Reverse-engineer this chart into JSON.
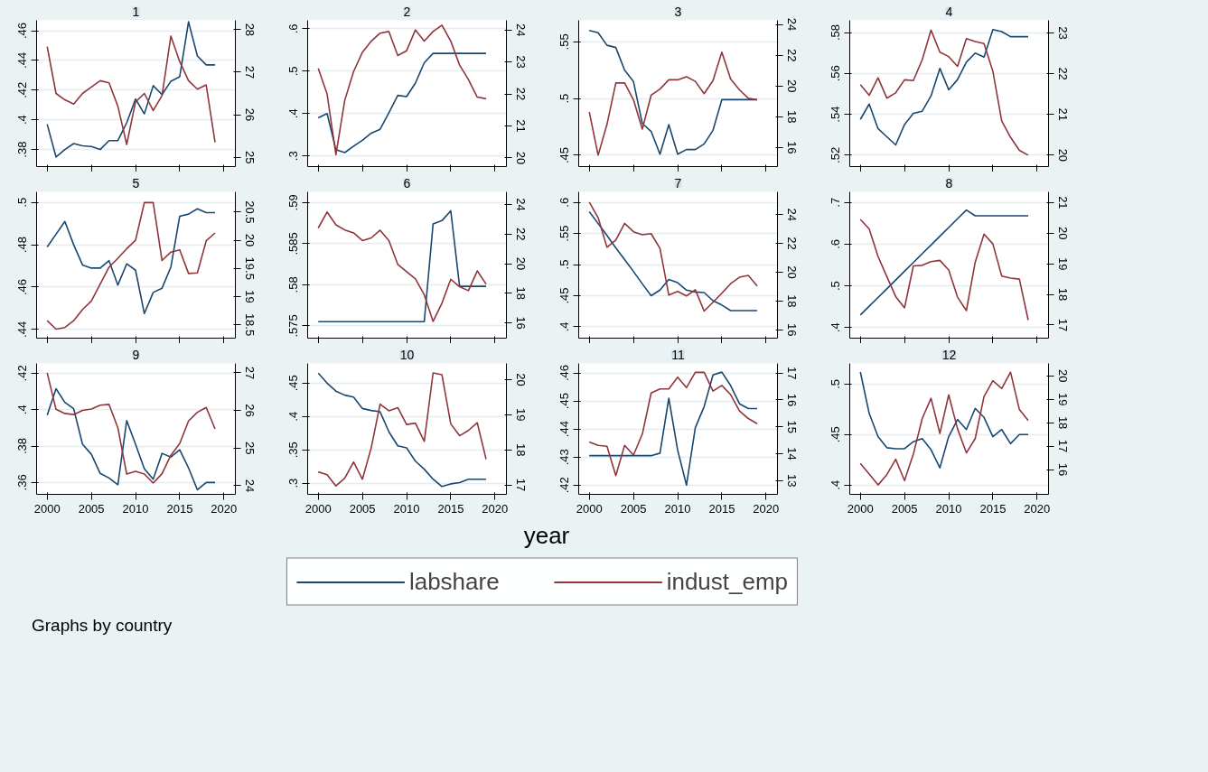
{
  "chart_data": [
    {
      "type": "line",
      "title": "1",
      "legend": "bottom",
      "annotations": [
        "Graphs by country"
      ],
      "x": [
        2000,
        2001,
        2002,
        2003,
        2004,
        2005,
        2006,
        2007,
        2008,
        2009,
        2010,
        2011,
        2012,
        2013,
        2014,
        2015,
        2016,
        2017,
        2018,
        2019
      ],
      "xlim": [
        1998.8,
        2021.3
      ],
      "xticks": [
        2000,
        2005,
        2010,
        2015,
        2020
      ],
      "ylim": [
        0.3685,
        0.467
      ],
      "yticks": [
        {
          "value": 0.38,
          "label": ".38"
        },
        {
          "value": 0.4,
          "label": ".4"
        },
        {
          "value": 0.42,
          "label": ".42"
        },
        {
          "value": 0.44,
          "label": ".44"
        },
        {
          "value": 0.46,
          "label": ".46"
        }
      ],
      "y2lim": [
        24.78,
        28.22
      ],
      "y2ticks": [
        25,
        26,
        27,
        28
      ],
      "grid": "y",
      "tick_labels": "y",
      "series": [
        {
          "name": "labshare",
          "color": "#1a476f",
          "values": [
            0.397,
            0.375,
            0.38,
            0.384,
            0.3825,
            0.382,
            0.38,
            0.386,
            0.386,
            0.398,
            0.414,
            0.404,
            0.423,
            0.417,
            0.426,
            0.429,
            0.466,
            0.443,
            0.437,
            0.437
          ]
        },
        {
          "name": "indust_emp",
          "color": "#90353b",
          "axis": "y2",
          "values": [
            27.6,
            26.5,
            26.35,
            26.25,
            26.5,
            26.65,
            26.8,
            26.75,
            26.2,
            25.3,
            26.3,
            26.5,
            26.1,
            26.45,
            27.85,
            27.25,
            26.8,
            26.6,
            26.7,
            25.35
          ]
        }
      ]
    },
    {
      "type": "line",
      "title": "2",
      "x": [
        2000,
        2001,
        2002,
        2003,
        2004,
        2005,
        2006,
        2007,
        2008,
        2009,
        2010,
        2011,
        2012,
        2013,
        2014,
        2015,
        2016,
        2017,
        2018,
        2019
      ],
      "xlim": [
        1998.8,
        2021.3
      ],
      "xticks": [
        2000,
        2005,
        2010,
        2015,
        2020
      ],
      "ylim": [
        0.275,
        0.62
      ],
      "yticks": [
        {
          "value": 0.3,
          "label": ".3"
        },
        {
          "value": 0.4,
          "label": ".4"
        },
        {
          "value": 0.5,
          "label": ".5"
        },
        {
          "value": 0.6,
          "label": ".6"
        }
      ],
      "y2lim": [
        19.73,
        24.3
      ],
      "y2ticks": [
        20,
        21,
        22,
        23,
        24
      ],
      "grid": "y",
      "tick_labels": "y",
      "series": [
        {
          "color": "#1a476f",
          "values": [
            0.39,
            0.4,
            0.315,
            0.308,
            0.323,
            0.337,
            0.354,
            0.363,
            0.402,
            0.443,
            0.44,
            0.472,
            0.52,
            0.542,
            0.542,
            0.542,
            0.542,
            0.542,
            0.542,
            0.542
          ]
        },
        {
          "color": "#90353b",
          "axis": "y2",
          "values": [
            22.8,
            22.0,
            20.1,
            21.8,
            22.7,
            23.3,
            23.65,
            23.9,
            23.95,
            23.2,
            23.35,
            24.0,
            23.65,
            23.95,
            24.15,
            23.65,
            22.9,
            22.45,
            21.9,
            21.85
          ]
        }
      ]
    },
    {
      "type": "line",
      "title": "3",
      "x": [
        2000,
        2001,
        2002,
        2003,
        2004,
        2005,
        2006,
        2007,
        2008,
        2009,
        2010,
        2011,
        2012,
        2013,
        2014,
        2015,
        2016,
        2017,
        2018,
        2019
      ],
      "xlim": [
        1998.8,
        2021.3
      ],
      "xticks": [
        2000,
        2005,
        2010,
        2015,
        2020
      ],
      "ylim": [
        0.44,
        0.569
      ],
      "yticks": [
        {
          "value": 0.45,
          "label": ".45"
        },
        {
          "value": 0.5,
          "label": ".5"
        },
        {
          "value": 0.55,
          "label": ".55"
        }
      ],
      "y2lim": [
        14.76,
        24.27
      ],
      "y2ticks": [
        16,
        18,
        20,
        22,
        24
      ],
      "grid": "y",
      "tick_labels": "y",
      "series": [
        {
          "color": "#1a476f",
          "values": [
            0.56,
            0.558,
            0.547,
            0.545,
            0.525,
            0.515,
            0.478,
            0.471,
            0.451,
            0.477,
            0.451,
            0.455,
            0.455,
            0.46,
            0.472,
            0.499,
            0.499,
            0.499,
            0.499,
            0.499
          ]
        },
        {
          "color": "#90353b",
          "axis": "y2",
          "values": [
            18.3,
            15.5,
            17.5,
            20.2,
            20.2,
            19.1,
            17.2,
            19.4,
            19.8,
            20.4,
            20.4,
            20.6,
            20.3,
            19.5,
            20.35,
            22.2,
            20.45,
            19.75,
            19.2,
            19.1
          ]
        }
      ]
    },
    {
      "type": "line",
      "title": "4",
      "x": [
        2000,
        2001,
        2002,
        2003,
        2004,
        2005,
        2006,
        2007,
        2008,
        2009,
        2010,
        2011,
        2012,
        2013,
        2014,
        2015,
        2016,
        2017,
        2018,
        2019
      ],
      "xlim": [
        1998.8,
        2021.3
      ],
      "xticks": [
        2000,
        2005,
        2010,
        2015,
        2020
      ],
      "ylim": [
        0.5144,
        0.586
      ],
      "yticks": [
        {
          "value": 0.52,
          "label": ".52"
        },
        {
          "value": 0.54,
          "label": ".54"
        },
        {
          "value": 0.56,
          "label": ".56"
        },
        {
          "value": 0.58,
          "label": ".58"
        }
      ],
      "y2lim": [
        19.72,
        23.31
      ],
      "y2ticks": [
        20,
        21,
        22,
        23
      ],
      "grid": "y",
      "tick_labels": "y",
      "series": [
        {
          "color": "#1a476f",
          "values": [
            0.5375,
            0.545,
            0.533,
            0.529,
            0.525,
            0.535,
            0.5405,
            0.5415,
            0.549,
            0.5625,
            0.552,
            0.557,
            0.5655,
            0.57,
            0.568,
            0.5815,
            0.5805,
            0.578,
            0.578,
            0.578
          ]
        },
        {
          "color": "#90353b",
          "axis": "y2",
          "values": [
            21.73,
            21.47,
            21.9,
            21.4,
            21.53,
            21.85,
            21.83,
            22.34,
            23.07,
            22.53,
            22.42,
            22.18,
            22.86,
            22.79,
            22.74,
            22.06,
            20.84,
            20.44,
            20.12,
            20.0
          ]
        }
      ]
    },
    {
      "type": "line",
      "title": "5",
      "x": [
        2000,
        2001,
        2002,
        2003,
        2004,
        2005,
        2006,
        2007,
        2008,
        2009,
        2010,
        2011,
        2012,
        2013,
        2014,
        2015,
        2016,
        2017,
        2018,
        2019
      ],
      "xlim": [
        1998.8,
        2021.3
      ],
      "xticks": [
        2000,
        2005,
        2010,
        2015,
        2020
      ],
      "ylim": [
        0.4359,
        0.505
      ],
      "yticks": [
        {
          "value": 0.44,
          "label": ".44"
        },
        {
          "value": 0.46,
          "label": ".46"
        },
        {
          "value": 0.48,
          "label": ".48"
        },
        {
          "value": 0.5,
          "label": ".5"
        }
      ],
      "y2lim": [
        18.26,
        20.86
      ],
      "y2ticks": [
        18.5,
        19,
        19.5,
        20,
        20.5
      ],
      "grid": "y",
      "tick_labels": "y",
      "series": [
        {
          "color": "#1a476f",
          "values": [
            0.479,
            0.485,
            0.491,
            0.48,
            0.4705,
            0.469,
            0.469,
            0.4725,
            0.461,
            0.471,
            0.468,
            0.4475,
            0.4575,
            0.4595,
            0.4695,
            0.4935,
            0.4945,
            0.497,
            0.4952,
            0.4952
          ]
        },
        {
          "color": "#90353b",
          "axis": "y2",
          "values": [
            18.57,
            18.42,
            18.45,
            18.57,
            18.77,
            18.92,
            19.22,
            19.52,
            19.68,
            19.85,
            20.0,
            20.67,
            20.67,
            19.64,
            19.79,
            19.83,
            19.41,
            19.42,
            19.99,
            20.13
          ]
        }
      ]
    },
    {
      "type": "line",
      "title": "6",
      "x": [
        2000,
        2001,
        2002,
        2003,
        2004,
        2005,
        2006,
        2007,
        2008,
        2009,
        2010,
        2011,
        2012,
        2013,
        2014,
        2015,
        2016,
        2017,
        2018,
        2019
      ],
      "xlim": [
        1998.8,
        2021.3
      ],
      "xticks": [
        2000,
        2005,
        2010,
        2015,
        2020
      ],
      "ylim": [
        0.5735,
        0.5913
      ],
      "yticks": [
        {
          "value": 0.575,
          "label": ".575"
        },
        {
          "value": 0.58,
          "label": ".58"
        },
        {
          "value": 0.585,
          "label": ".585"
        },
        {
          "value": 0.59,
          "label": ".59"
        }
      ],
      "y2lim": [
        14.97,
        24.85
      ],
      "y2ticks": [
        16,
        18,
        20,
        22,
        24
      ],
      "grid": "y",
      "tick_labels": "y",
      "series": [
        {
          "color": "#1a476f",
          "values": [
            0.5755,
            0.5755,
            0.5755,
            0.5755,
            0.5755,
            0.5755,
            0.5755,
            0.5755,
            0.5755,
            0.5755,
            0.5755,
            0.5755,
            0.5755,
            0.5874,
            0.5878,
            0.589,
            0.5798,
            0.5798,
            0.5798,
            0.5798
          ]
        },
        {
          "color": "#90353b",
          "axis": "y2",
          "values": [
            22.41,
            23.49,
            22.62,
            22.28,
            22.08,
            21.56,
            21.74,
            22.26,
            21.56,
            19.95,
            19.46,
            18.97,
            17.9,
            16.1,
            17.33,
            18.95,
            18.44,
            18.18,
            19.51,
            18.62
          ]
        }
      ]
    },
    {
      "type": "line",
      "title": "7",
      "x": [
        2000,
        2001,
        2002,
        2003,
        2004,
        2005,
        2006,
        2007,
        2008,
        2009,
        2010,
        2011,
        2012,
        2013,
        2014,
        2015,
        2016,
        2017,
        2018,
        2019
      ],
      "xlim": [
        1998.8,
        2021.3
      ],
      "xticks": [
        2000,
        2005,
        2010,
        2015,
        2020
      ],
      "ylim": [
        0.3817,
        0.617
      ],
      "yticks": [
        {
          "value": 0.4,
          "label": ".4"
        },
        {
          "value": 0.45,
          "label": ".45"
        },
        {
          "value": 0.5,
          "label": ".5"
        },
        {
          "value": 0.55,
          "label": ".55"
        },
        {
          "value": 0.6,
          "label": ".6"
        }
      ],
      "y2lim": [
        15.42,
        25.58
      ],
      "y2ticks": [
        16,
        18,
        20,
        22,
        24
      ],
      "grid": "y",
      "tick_labels": "y",
      "series": [
        {
          "color": "#1a476f",
          "values": [
            0.585,
            0.566,
            0.547,
            0.527,
            0.508,
            0.489,
            0.469,
            0.45,
            0.459,
            0.476,
            0.471,
            0.459,
            0.456,
            0.455,
            0.442,
            0.435,
            0.426,
            0.426,
            0.426,
            0.426
          ]
        },
        {
          "color": "#90353b",
          "axis": "y2",
          "values": [
            24.87,
            23.79,
            21.73,
            22.23,
            23.39,
            22.81,
            22.6,
            22.68,
            21.65,
            18.41,
            18.67,
            18.35,
            18.78,
            17.3,
            17.91,
            18.54,
            19.2,
            19.65,
            19.78,
            19.04
          ]
        }
      ]
    },
    {
      "type": "line",
      "title": "8",
      "x": [
        2000,
        2001,
        2002,
        2003,
        2004,
        2005,
        2006,
        2007,
        2008,
        2009,
        2010,
        2011,
        2012,
        2013,
        2014,
        2015,
        2016,
        2017,
        2018,
        2019
      ],
      "xlim": [
        1998.8,
        2021.3
      ],
      "xticks": [
        2000,
        2005,
        2010,
        2015,
        2020
      ],
      "ylim": [
        0.3745,
        0.7255
      ],
      "yticks": [
        {
          "value": 0.4,
          "label": ".4"
        },
        {
          "value": 0.5,
          "label": ".5"
        },
        {
          "value": 0.6,
          "label": ".6"
        },
        {
          "value": 0.7,
          "label": ".7"
        }
      ],
      "y2lim": [
        16.57,
        21.35
      ],
      "y2ticks": [
        17,
        18,
        19,
        20,
        21
      ],
      "grid": "y",
      "tick_labels": "y",
      "series": [
        {
          "color": "#1a476f",
          "values": [
            0.43,
            0.451,
            0.472,
            0.493,
            0.514,
            0.535,
            0.556,
            0.577,
            0.598,
            0.619,
            0.64,
            0.661,
            0.682,
            0.668,
            0.668,
            0.668,
            0.668,
            0.668,
            0.668,
            0.668
          ]
        },
        {
          "color": "#90353b",
          "axis": "y2",
          "values": [
            20.45,
            20.14,
            19.24,
            18.58,
            17.93,
            17.56,
            18.93,
            18.95,
            19.07,
            19.11,
            18.8,
            17.91,
            17.47,
            19.05,
            19.97,
            19.65,
            18.6,
            18.53,
            18.5,
            17.16
          ]
        }
      ]
    },
    {
      "type": "line",
      "title": "9",
      "x": [
        2000,
        2001,
        2002,
        2003,
        2004,
        2005,
        2006,
        2007,
        2008,
        2009,
        2010,
        2011,
        2012,
        2013,
        2014,
        2015,
        2016,
        2017,
        2018,
        2019
      ],
      "xlim": [
        1998.8,
        2021.3
      ],
      "xticks": [
        2000,
        2005,
        2010,
        2015,
        2020
      ],
      "ylim": [
        0.3535,
        0.4254
      ],
      "yticks": [
        {
          "value": 0.36,
          "label": ".36"
        },
        {
          "value": 0.38,
          "label": ".38"
        },
        {
          "value": 0.4,
          "label": ".4"
        },
        {
          "value": 0.42,
          "label": ".42"
        }
      ],
      "y2lim": [
        23.77,
        27.25
      ],
      "y2ticks": [
        24,
        25,
        26,
        27
      ],
      "grid": "y",
      "series": [
        {
          "color": "#1a476f",
          "values": [
            0.397,
            0.4115,
            0.404,
            0.4005,
            0.381,
            0.3755,
            0.365,
            0.3625,
            0.3588,
            0.394,
            0.381,
            0.3675,
            0.3618,
            0.376,
            0.374,
            0.378,
            0.368,
            0.356,
            0.36,
            0.36
          ]
        },
        {
          "color": "#90353b",
          "axis": "y2",
          "values": [
            27.0,
            26.03,
            25.92,
            25.89,
            26.0,
            26.04,
            26.14,
            26.16,
            25.54,
            24.31,
            24.38,
            24.31,
            24.07,
            24.32,
            24.81,
            25.12,
            25.72,
            25.95,
            26.08,
            25.51
          ]
        }
      ]
    },
    {
      "type": "line",
      "title": "10",
      "xlabel": "year",
      "x": [
        2000,
        2001,
        2002,
        2003,
        2004,
        2005,
        2006,
        2007,
        2008,
        2009,
        2010,
        2011,
        2012,
        2013,
        2014,
        2015,
        2016,
        2017,
        2018,
        2019
      ],
      "xlim": [
        1998.8,
        2021.3
      ],
      "xticks": [
        2000,
        2005,
        2010,
        2015,
        2020
      ],
      "ylim": [
        0.2833,
        0.4795
      ],
      "yticks": [
        {
          "value": 0.3,
          "label": ".3"
        },
        {
          "value": 0.35,
          "label": ".35"
        },
        {
          "value": 0.4,
          "label": ".4"
        },
        {
          "value": 0.45,
          "label": ".45"
        }
      ],
      "y2lim": [
        16.73,
        20.46
      ],
      "y2ticks": [
        17,
        18,
        19,
        20
      ],
      "grid": "y",
      "series": [
        {
          "color": "#1a476f",
          "values": [
            0.465,
            0.45,
            0.438,
            0.432,
            0.429,
            0.412,
            0.409,
            0.407,
            0.377,
            0.356,
            0.353,
            0.333,
            0.321,
            0.306,
            0.295,
            0.299,
            0.301,
            0.306,
            0.306,
            0.306
          ]
        },
        {
          "color": "#90353b",
          "axis": "y2",
          "values": [
            17.37,
            17.29,
            16.97,
            17.19,
            17.65,
            17.16,
            18.06,
            19.3,
            19.11,
            19.2,
            18.72,
            18.76,
            18.24,
            20.19,
            20.14,
            18.74,
            18.4,
            18.55,
            18.77,
            17.73
          ]
        }
      ]
    },
    {
      "type": "line",
      "title": "11",
      "x": [
        2000,
        2001,
        2002,
        2003,
        2004,
        2005,
        2006,
        2007,
        2008,
        2009,
        2010,
        2011,
        2012,
        2013,
        2014,
        2015,
        2016,
        2017,
        2018,
        2019
      ],
      "xlim": [
        1998.8,
        2021.3
      ],
      "xticks": [
        2000,
        2005,
        2010,
        2015,
        2020
      ],
      "ylim": [
        0.4167,
        0.4634
      ],
      "yticks": [
        {
          "value": 0.42,
          "label": ".42"
        },
        {
          "value": 0.43,
          "label": ".43"
        },
        {
          "value": 0.44,
          "label": ".44"
        },
        {
          "value": 0.45,
          "label": ".45"
        },
        {
          "value": 0.46,
          "label": ".46"
        }
      ],
      "y2lim": [
        12.49,
        17.36
      ],
      "y2ticks": [
        13,
        14,
        15,
        16,
        17
      ],
      "grid": "y",
      "series": [
        {
          "color": "#1a476f",
          "values": [
            0.4305,
            0.4305,
            0.4305,
            0.4305,
            0.4305,
            0.4305,
            0.4305,
            0.4305,
            0.4314,
            0.451,
            0.4325,
            0.42,
            0.4405,
            0.448,
            0.4593,
            0.4603,
            0.4555,
            0.449,
            0.4473,
            0.4473
          ]
        },
        {
          "color": "#90353b",
          "axis": "y2",
          "values": [
            14.44,
            14.31,
            14.28,
            13.19,
            14.31,
            13.95,
            14.73,
            16.26,
            16.41,
            16.41,
            16.85,
            16.46,
            17.03,
            17.03,
            16.33,
            16.54,
            16.2,
            15.59,
            15.31,
            15.12
          ]
        }
      ]
    },
    {
      "type": "line",
      "title": "12",
      "x": [
        2000,
        2001,
        2002,
        2003,
        2004,
        2005,
        2006,
        2007,
        2008,
        2009,
        2010,
        2011,
        2012,
        2013,
        2014,
        2015,
        2016,
        2017,
        2018,
        2019
      ],
      "xlim": [
        1998.8,
        2021.3
      ],
      "xticks": [
        2000,
        2005,
        2010,
        2015,
        2020
      ],
      "ylim": [
        0.3908,
        0.5205
      ],
      "yticks": [
        {
          "value": 0.4,
          "label": ".4"
        },
        {
          "value": 0.45,
          "label": ".45"
        },
        {
          "value": 0.5,
          "label": ".5"
        }
      ],
      "y2lim": [
        14.94,
        20.53
      ],
      "y2ticks": [
        16,
        17,
        18,
        19,
        20
      ],
      "grid": "y",
      "series": [
        {
          "color": "#1a476f",
          "values": [
            0.512,
            0.471,
            0.448,
            0.437,
            0.436,
            0.436,
            0.443,
            0.446,
            0.435,
            0.417,
            0.448,
            0.465,
            0.455,
            0.476,
            0.467,
            0.448,
            0.455,
            0.441,
            0.45,
            0.45
          ]
        },
        {
          "color": "#90353b",
          "axis": "y2",
          "values": [
            16.26,
            15.81,
            15.34,
            15.78,
            16.44,
            15.53,
            16.66,
            18.18,
            19.04,
            17.54,
            19.19,
            17.74,
            16.71,
            17.32,
            19.12,
            19.79,
            19.46,
            20.16,
            18.56,
            18.09
          ]
        }
      ]
    }
  ]
}
